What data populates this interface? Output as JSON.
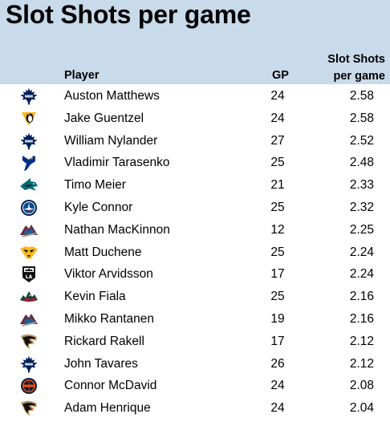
{
  "title": "Slot Shots per game",
  "columns": {
    "player": "Player",
    "gp": "GP",
    "slot_shots_line1": "Slot Shots",
    "slot_shots_line2": "per game"
  },
  "colors": {
    "header_bg": "#c9daea",
    "leafs": "#00205b",
    "penguins": "#fcb514",
    "blues": "#002f87",
    "sharks": "#006d75",
    "jets": "#041e42",
    "avalanche": "#6f263d",
    "predators": "#ffb81c",
    "kings": "#111111",
    "wild": "#154734",
    "ducks": "#b09862",
    "oilers": "#041e42"
  },
  "chart_data": {
    "type": "table",
    "title": "Slot Shots per game",
    "columns": [
      "Player",
      "GP",
      "Slot Shots per game"
    ],
    "rows": [
      {
        "team_logo": "toronto-maple-leafs-icon",
        "player": "Auston Matthews",
        "gp": "24",
        "slot_shots_per_game": "2.58"
      },
      {
        "team_logo": "pittsburgh-penguins-icon",
        "player": "Jake Guentzel",
        "gp": "24",
        "slot_shots_per_game": "2.58"
      },
      {
        "team_logo": "toronto-maple-leafs-icon",
        "player": "William Nylander",
        "gp": "27",
        "slot_shots_per_game": "2.52"
      },
      {
        "team_logo": "st-louis-blues-icon",
        "player": "Vladimir Tarasenko",
        "gp": "25",
        "slot_shots_per_game": "2.48"
      },
      {
        "team_logo": "san-jose-sharks-icon",
        "player": "Timo Meier",
        "gp": "21",
        "slot_shots_per_game": "2.33"
      },
      {
        "team_logo": "winnipeg-jets-icon",
        "player": "Kyle Connor",
        "gp": "25",
        "slot_shots_per_game": "2.32"
      },
      {
        "team_logo": "colorado-avalanche-icon",
        "player": "Nathan MacKinnon",
        "gp": "12",
        "slot_shots_per_game": "2.25"
      },
      {
        "team_logo": "nashville-predators-icon",
        "player": "Matt Duchene",
        "gp": "25",
        "slot_shots_per_game": "2.24"
      },
      {
        "team_logo": "los-angeles-kings-icon",
        "player": "Viktor Arvidsson",
        "gp": "17",
        "slot_shots_per_game": "2.24"
      },
      {
        "team_logo": "minnesota-wild-icon",
        "player": "Kevin Fiala",
        "gp": "25",
        "slot_shots_per_game": "2.16"
      },
      {
        "team_logo": "colorado-avalanche-icon",
        "player": "Mikko Rantanen",
        "gp": "19",
        "slot_shots_per_game": "2.16"
      },
      {
        "team_logo": "anaheim-ducks-icon",
        "player": "Rickard Rakell",
        "gp": "17",
        "slot_shots_per_game": "2.12"
      },
      {
        "team_logo": "toronto-maple-leafs-icon",
        "player": "John Tavares",
        "gp": "26",
        "slot_shots_per_game": "2.12"
      },
      {
        "team_logo": "edmonton-oilers-icon",
        "player": "Connor McDavid",
        "gp": "24",
        "slot_shots_per_game": "2.08"
      },
      {
        "team_logo": "anaheim-ducks-icon",
        "player": "Adam Henrique",
        "gp": "24",
        "slot_shots_per_game": "2.04"
      }
    ]
  }
}
